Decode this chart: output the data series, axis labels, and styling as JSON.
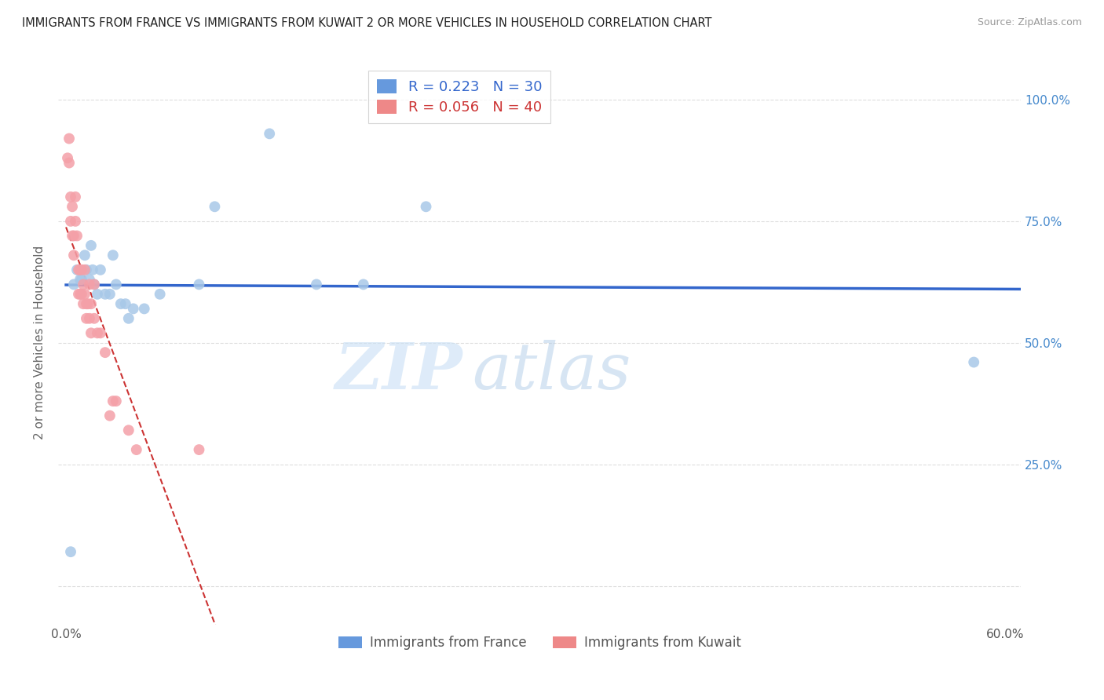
{
  "title": "IMMIGRANTS FROM FRANCE VS IMMIGRANTS FROM KUWAIT 2 OR MORE VEHICLES IN HOUSEHOLD CORRELATION CHART",
  "source": "Source: ZipAtlas.com",
  "ylabel": "2 or more Vehicles in Household",
  "x_ticks": [
    0.0,
    0.1,
    0.2,
    0.3,
    0.4,
    0.5,
    0.6
  ],
  "x_tick_labels": [
    "0.0%",
    "",
    "",
    "",
    "",
    "",
    "60.0%"
  ],
  "y_ticks": [
    0.0,
    0.25,
    0.5,
    0.75,
    1.0
  ],
  "y_tick_labels_right": [
    "",
    "25.0%",
    "50.0%",
    "75.0%",
    "100.0%"
  ],
  "xlim": [
    -0.005,
    0.61
  ],
  "ylim": [
    -0.08,
    1.08
  ],
  "france_R": 0.223,
  "france_N": 30,
  "kuwait_R": 0.056,
  "kuwait_N": 40,
  "france_color": "#a8c8e8",
  "kuwait_color": "#f4a0a8",
  "france_line_color": "#3366cc",
  "kuwait_line_color": "#cc3333",
  "france_legend_color": "#6699dd",
  "kuwait_legend_color": "#ee8888",
  "watermark_zip": "ZIP",
  "watermark_atlas": "atlas",
  "legend_labels": [
    "Immigrants from France",
    "Immigrants from Kuwait"
  ],
  "france_x": [
    0.003,
    0.005,
    0.007,
    0.009,
    0.01,
    0.012,
    0.013,
    0.015,
    0.016,
    0.017,
    0.018,
    0.02,
    0.022,
    0.025,
    0.028,
    0.03,
    0.032,
    0.035,
    0.038,
    0.04,
    0.043,
    0.05,
    0.06,
    0.085,
    0.095,
    0.13,
    0.16,
    0.19,
    0.23,
    0.58
  ],
  "france_y": [
    0.07,
    0.62,
    0.65,
    0.63,
    0.63,
    0.68,
    0.65,
    0.63,
    0.7,
    0.65,
    0.62,
    0.6,
    0.65,
    0.6,
    0.6,
    0.68,
    0.62,
    0.58,
    0.58,
    0.55,
    0.57,
    0.57,
    0.6,
    0.62,
    0.78,
    0.93,
    0.62,
    0.62,
    0.78,
    0.46
  ],
  "kuwait_x": [
    0.001,
    0.002,
    0.002,
    0.003,
    0.003,
    0.004,
    0.004,
    0.005,
    0.005,
    0.006,
    0.006,
    0.007,
    0.008,
    0.008,
    0.009,
    0.009,
    0.01,
    0.01,
    0.011,
    0.011,
    0.012,
    0.012,
    0.013,
    0.013,
    0.014,
    0.015,
    0.015,
    0.016,
    0.016,
    0.018,
    0.018,
    0.02,
    0.022,
    0.025,
    0.028,
    0.03,
    0.032,
    0.04,
    0.045,
    0.085
  ],
  "kuwait_y": [
    0.88,
    0.92,
    0.87,
    0.8,
    0.75,
    0.78,
    0.72,
    0.72,
    0.68,
    0.8,
    0.75,
    0.72,
    0.65,
    0.6,
    0.65,
    0.6,
    0.65,
    0.6,
    0.62,
    0.58,
    0.65,
    0.6,
    0.58,
    0.55,
    0.58,
    0.62,
    0.55,
    0.58,
    0.52,
    0.62,
    0.55,
    0.52,
    0.52,
    0.48,
    0.35,
    0.38,
    0.38,
    0.32,
    0.28,
    0.28
  ]
}
